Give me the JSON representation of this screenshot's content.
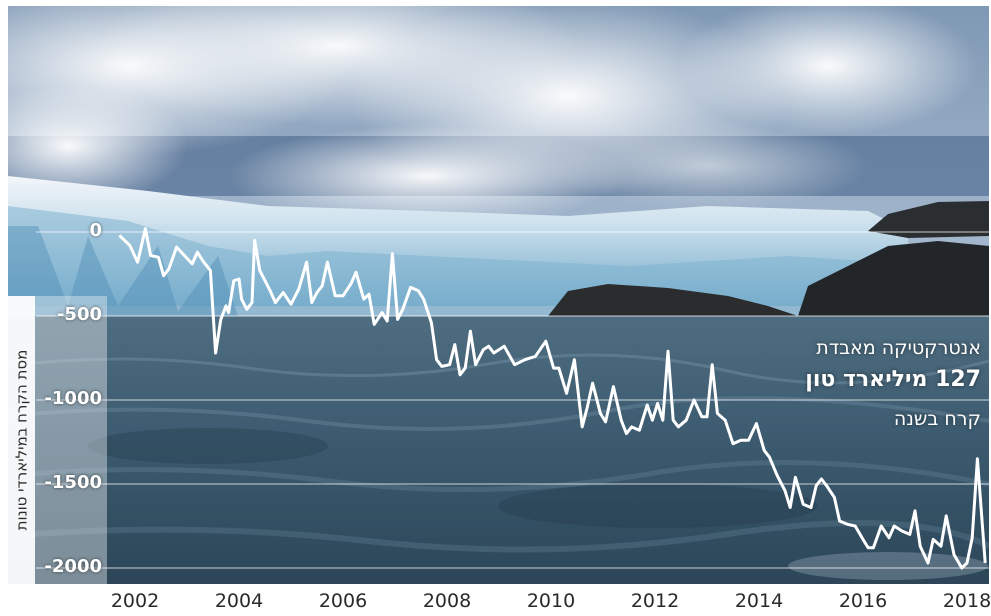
{
  "chart_data": {
    "type": "line",
    "ylabel": "מסת הקרח במיליארדי טונות",
    "ylim": [
      -2000,
      0
    ],
    "y_ticks": [
      "0",
      "-500",
      "-1000",
      "-1500",
      "-2000"
    ],
    "y_tick_values": [
      0,
      -500,
      -1000,
      -1500,
      -2000
    ],
    "x_ticks": [
      "2002",
      "2004",
      "2006",
      "2008",
      "2010",
      "2012",
      "2014",
      "2016",
      "2018"
    ],
    "x_tick_values": [
      2002,
      2004,
      2006,
      2008,
      2010,
      2012,
      2014,
      2016,
      2018
    ],
    "xlim": [
      2002,
      2018
    ],
    "grid": true,
    "line_color": "#ffffff",
    "annotation": {
      "line1": "אנטרקטיקה מאבדת",
      "line2_number": "127",
      "line2_text": "מיליארד טון",
      "line3": "קרח בשנה"
    },
    "series": [
      {
        "x": [
          2001.7,
          2001.9,
          2002.05,
          2002.2,
          2002.3,
          2002.45,
          2002.55,
          2002.65,
          2002.8,
          2002.95,
          2003.1,
          2003.2,
          2003.3,
          2003.45,
          2003.55,
          2003.65,
          2003.75,
          2003.8,
          2003.9,
          2004.0,
          2004.05,
          2004.15,
          2004.25,
          2004.3,
          2004.4,
          2004.5,
          2004.6,
          2004.7,
          2004.85,
          2005.0,
          2005.15,
          2005.3,
          2005.4,
          2005.5,
          2005.6,
          2005.7,
          2005.85,
          2006.0,
          2006.15,
          2006.25,
          2006.4,
          2006.5,
          2006.6,
          2006.75,
          2006.85,
          2006.95,
          2007.05,
          2007.15,
          2007.3,
          2007.45,
          2007.55,
          2007.7,
          2007.8,
          2007.9,
          2008.05,
          2008.15,
          2008.25,
          2008.35,
          2008.45,
          2008.55,
          2008.7,
          2008.8,
          2008.9,
          2009.1,
          2009.3,
          2009.5,
          2009.7,
          2009.9,
          2010.05,
          2010.15,
          2010.3,
          2010.45,
          2010.6,
          2010.7,
          2010.8,
          2010.95,
          2011.05,
          2011.2,
          2011.35,
          2011.45,
          2011.55,
          2011.7,
          2011.85,
          2011.95,
          2012.05,
          2012.15,
          2012.25,
          2012.35,
          2012.45,
          2012.6,
          2012.75,
          2012.9,
          2013.0,
          2013.1,
          2013.2,
          2013.35,
          2013.5,
          2013.65,
          2013.8,
          2013.95,
          2014.1,
          2014.2,
          2014.35,
          2014.5,
          2014.6,
          2014.7,
          2014.85,
          2015.0,
          2015.1,
          2015.2,
          2015.3,
          2015.45,
          2015.55,
          2015.7,
          2015.85,
          2016.0,
          2016.1,
          2016.2,
          2016.35,
          2016.5,
          2016.6,
          2016.75,
          2016.9,
          2017.0,
          2017.1,
          2017.25,
          2017.35,
          2017.5,
          2017.6,
          2017.75,
          2017.9,
          2018.0,
          2018.1,
          2018.2,
          2018.35
        ],
        "y": [
          -20,
          -80,
          -180,
          20,
          -140,
          -150,
          -260,
          -220,
          -90,
          -140,
          -190,
          -120,
          -170,
          -230,
          -720,
          -520,
          -440,
          -480,
          -290,
          -280,
          -400,
          -460,
          -420,
          -50,
          -230,
          -290,
          -350,
          -420,
          -360,
          -430,
          -340,
          -180,
          -420,
          -360,
          -320,
          -180,
          -380,
          -380,
          -310,
          -240,
          -400,
          -370,
          -550,
          -480,
          -530,
          -130,
          -520,
          -460,
          -330,
          -350,
          -400,
          -540,
          -760,
          -800,
          -790,
          -670,
          -850,
          -810,
          -590,
          -790,
          -700,
          -680,
          -720,
          -680,
          -790,
          -760,
          -740,
          -650,
          -810,
          -810,
          -960,
          -760,
          -1160,
          -1040,
          -900,
          -1080,
          -1130,
          -920,
          -1120,
          -1200,
          -1160,
          -1180,
          -1030,
          -1120,
          -1020,
          -1120,
          -710,
          -1120,
          -1160,
          -1120,
          -1000,
          -1100,
          -1100,
          -790,
          -1080,
          -1120,
          -1260,
          -1240,
          -1240,
          -1140,
          -1300,
          -1340,
          -1450,
          -1540,
          -1640,
          -1460,
          -1620,
          -1640,
          -1510,
          -1470,
          -1510,
          -1580,
          -1720,
          -1740,
          -1750,
          -1830,
          -1880,
          -1880,
          -1750,
          -1820,
          -1750,
          -1780,
          -1800,
          -1660,
          -1870,
          -1970,
          -1830,
          -1870,
          -1690,
          -1920,
          -2000,
          -1970,
          -1820,
          -1350,
          -1970
        ]
      }
    ]
  }
}
